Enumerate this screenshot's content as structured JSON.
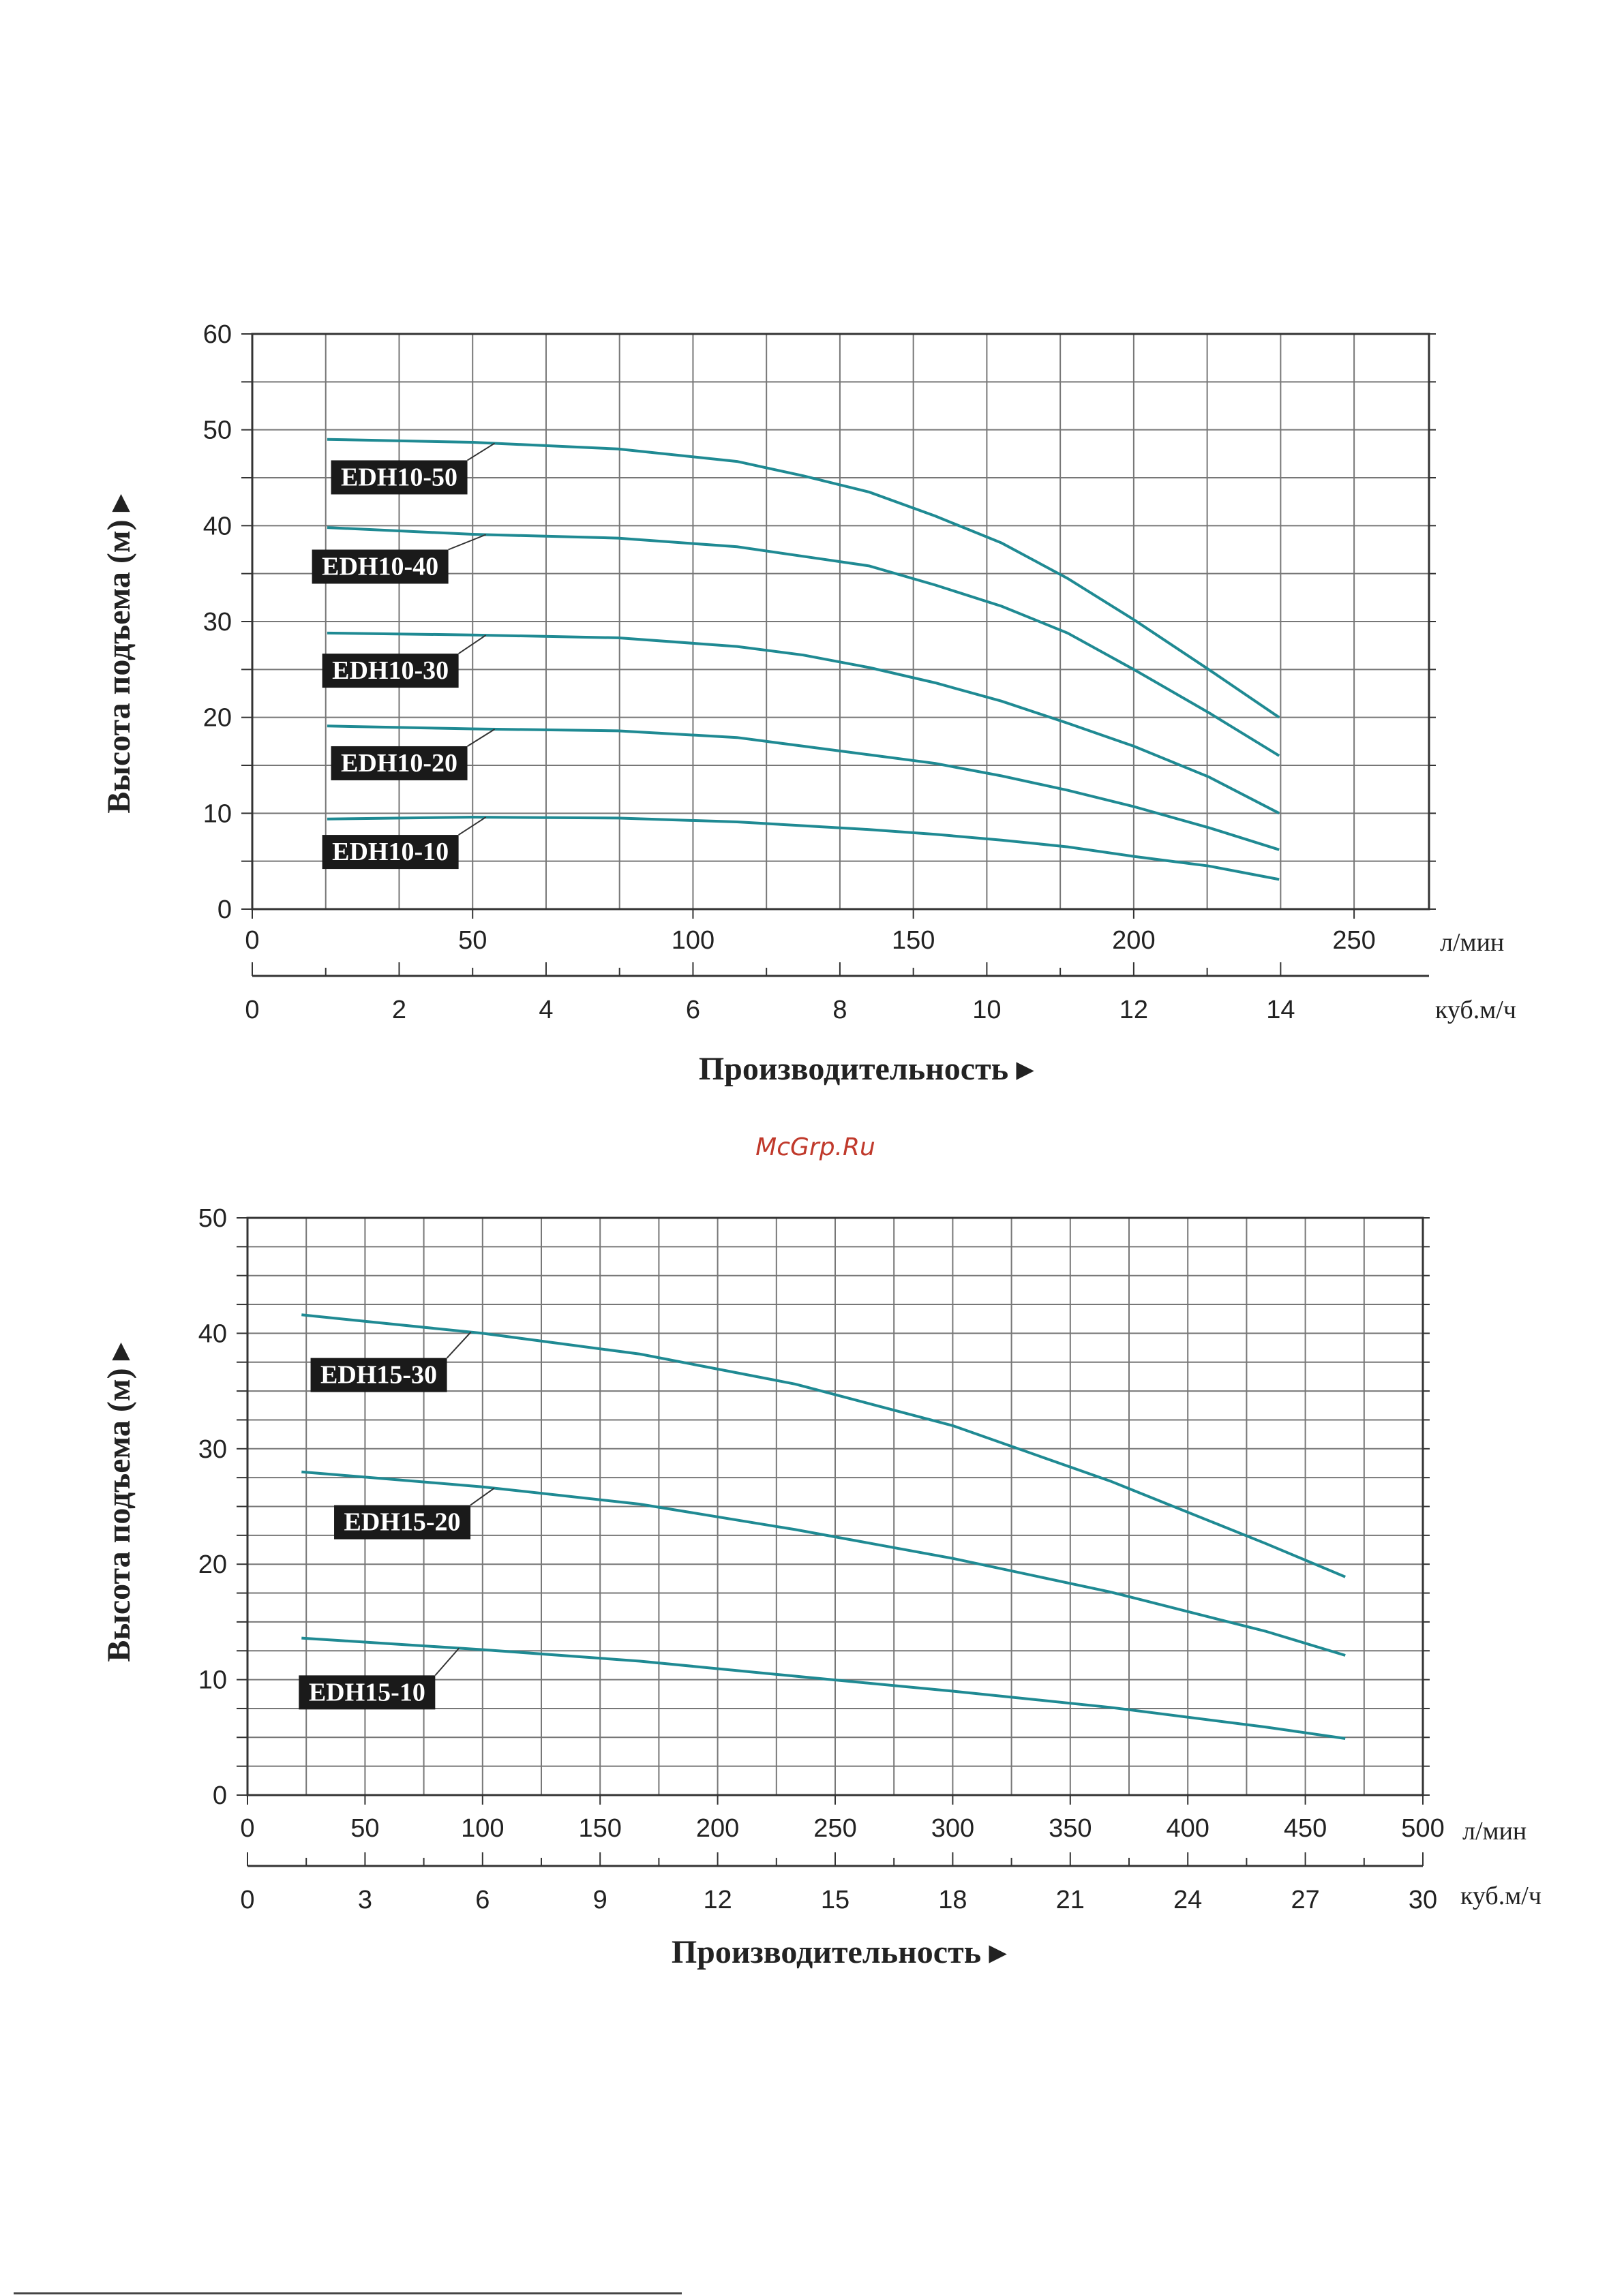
{
  "watermark": "McGrp.Ru",
  "chart_data": [
    {
      "type": "line",
      "ylabel": "Высота подъема (м) ▸",
      "xlabel": "Производительность ▸",
      "x_unit_primary": "л/мин",
      "x_unit_secondary": "куб.м/ч",
      "xlim": [
        0,
        267
      ],
      "ylim": [
        0,
        60
      ],
      "x_ticks": [
        0,
        50,
        100,
        150,
        200,
        250
      ],
      "x2_ticks": [
        0,
        2,
        4,
        6,
        8,
        10,
        12,
        14
      ],
      "y_ticks": [
        0,
        10,
        20,
        30,
        40,
        50,
        60
      ],
      "grid": true,
      "series": [
        {
          "name": "EDH10-50",
          "x": [
            17,
            50,
            83,
            110,
            125,
            140,
            155,
            170,
            185,
            200,
            217,
            233
          ],
          "y": [
            49,
            48.7,
            48,
            46.7,
            45.2,
            43.5,
            41,
            38.2,
            34.5,
            30.2,
            25,
            20
          ],
          "label_anchor": 55
        },
        {
          "name": "EDH10-40",
          "x": [
            17,
            50,
            83,
            110,
            125,
            140,
            155,
            170,
            185,
            200,
            217,
            233
          ],
          "y": [
            39.8,
            39.1,
            38.7,
            37.8,
            36.8,
            35.8,
            33.8,
            31.6,
            28.8,
            25,
            20.5,
            16
          ],
          "label_anchor": 53
        },
        {
          "name": "EDH10-30",
          "x": [
            17,
            50,
            83,
            110,
            125,
            140,
            155,
            170,
            185,
            200,
            217,
            233
          ],
          "y": [
            28.8,
            28.6,
            28.3,
            27.4,
            26.5,
            25.2,
            23.6,
            21.7,
            19.4,
            17,
            13.8,
            10
          ],
          "label_anchor": 53
        },
        {
          "name": "EDH10-20",
          "x": [
            17,
            50,
            83,
            110,
            125,
            140,
            155,
            170,
            185,
            200,
            217,
            233
          ],
          "y": [
            19.1,
            18.8,
            18.6,
            17.9,
            17,
            16.1,
            15.2,
            13.9,
            12.4,
            10.7,
            8.5,
            6.2
          ],
          "label_anchor": 55
        },
        {
          "name": "EDH10-10",
          "x": [
            17,
            50,
            83,
            110,
            125,
            140,
            155,
            170,
            185,
            200,
            217,
            233
          ],
          "y": [
            9.4,
            9.6,
            9.5,
            9.1,
            8.7,
            8.3,
            7.8,
            7.2,
            6.5,
            5.5,
            4.5,
            3.1
          ],
          "label_anchor": 53
        }
      ]
    },
    {
      "type": "line",
      "ylabel": "Высота подъема (м) ▸",
      "xlabel": "Производительность ▸",
      "x_unit_primary": "л/мин",
      "x_unit_secondary": "куб.м/ч",
      "xlim": [
        0,
        500
      ],
      "ylim": [
        0,
        50
      ],
      "x_ticks": [
        0,
        50,
        100,
        150,
        200,
        250,
        300,
        350,
        400,
        450,
        500
      ],
      "x2_ticks": [
        0,
        3,
        6,
        9,
        12,
        15,
        18,
        21,
        24,
        27,
        30
      ],
      "y_ticks": [
        0,
        10,
        20,
        30,
        40,
        50
      ],
      "grid": true,
      "series": [
        {
          "name": "EDH15-30",
          "x": [
            23,
            100,
            167,
            233,
            300,
            367,
            433,
            467
          ],
          "y": [
            41.6,
            40,
            38.2,
            35.6,
            32,
            27.2,
            21.8,
            18.9
          ],
          "label_anchor": 95
        },
        {
          "name": "EDH15-20",
          "x": [
            23,
            100,
            167,
            233,
            300,
            367,
            433,
            467
          ],
          "y": [
            28,
            26.7,
            25.2,
            23,
            20.5,
            17.6,
            14.2,
            12.1
          ],
          "label_anchor": 105
        },
        {
          "name": "EDH15-10",
          "x": [
            23,
            100,
            167,
            233,
            300,
            367,
            433,
            467
          ],
          "y": [
            13.6,
            12.6,
            11.6,
            10.3,
            9,
            7.6,
            5.9,
            4.9
          ],
          "label_anchor": 90
        }
      ]
    }
  ]
}
